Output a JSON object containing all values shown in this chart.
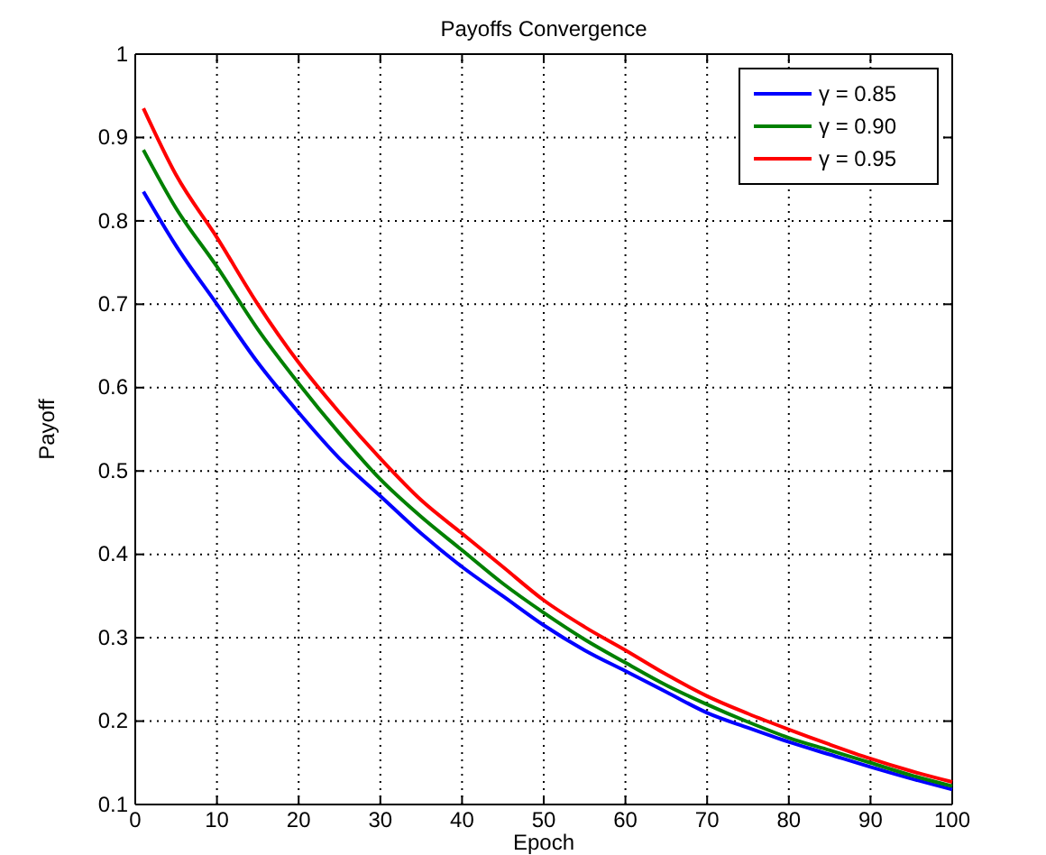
{
  "chart_data": {
    "type": "line",
    "title": "Payoffs Convergence",
    "xlabel": "Epoch",
    "ylabel": "Payoff",
    "x": [
      1,
      5,
      10,
      15,
      20,
      25,
      30,
      35,
      40,
      45,
      50,
      55,
      60,
      65,
      70,
      75,
      80,
      85,
      90,
      95,
      100
    ],
    "series": [
      {
        "name": "γ = 0.85",
        "color": "#0000ff",
        "values": [
          0.835,
          0.77,
          0.7,
          0.63,
          0.57,
          0.515,
          0.47,
          0.425,
          0.385,
          0.35,
          0.315,
          0.285,
          0.26,
          0.235,
          0.21,
          0.192,
          0.175,
          0.16,
          0.145,
          0.131,
          0.118
        ]
      },
      {
        "name": "γ = 0.90",
        "color": "#008000",
        "values": [
          0.885,
          0.815,
          0.745,
          0.67,
          0.605,
          0.545,
          0.49,
          0.445,
          0.405,
          0.365,
          0.33,
          0.298,
          0.27,
          0.243,
          0.22,
          0.199,
          0.18,
          0.165,
          0.15,
          0.135,
          0.122
        ]
      },
      {
        "name": "γ = 0.95",
        "color": "#ff0000",
        "values": [
          0.935,
          0.855,
          0.78,
          0.7,
          0.63,
          0.57,
          0.515,
          0.465,
          0.425,
          0.385,
          0.345,
          0.313,
          0.285,
          0.256,
          0.23,
          0.209,
          0.19,
          0.172,
          0.155,
          0.14,
          0.127
        ]
      }
    ],
    "xlim": [
      0,
      100
    ],
    "xticks": [
      0,
      10,
      20,
      30,
      40,
      50,
      60,
      70,
      80,
      90,
      100
    ],
    "ylim": [
      0.1,
      1
    ],
    "yticks": [
      0.1,
      0.2,
      0.3,
      0.4,
      0.5,
      0.6,
      0.7,
      0.8,
      0.9,
      1
    ],
    "grid": true,
    "legend": "top right",
    "marker": "none",
    "line_style": "solid"
  }
}
